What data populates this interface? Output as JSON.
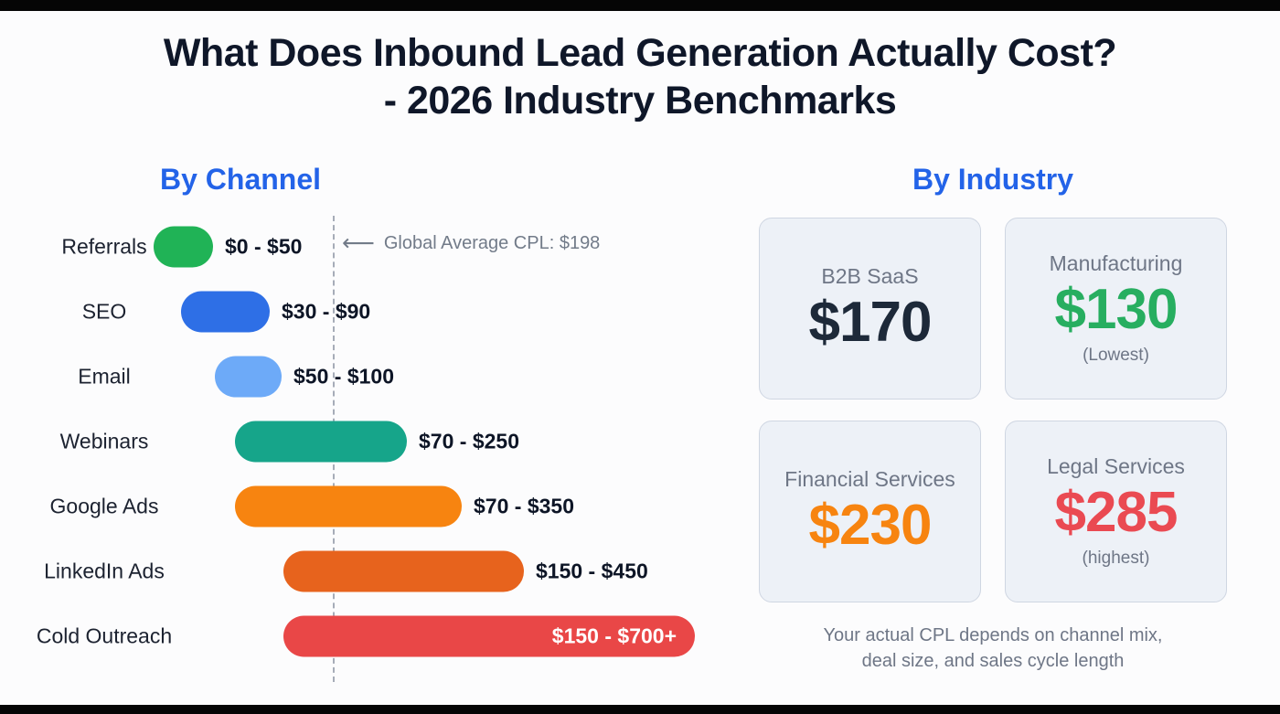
{
  "page": {
    "title": "What Does Inbound Lead Generation Actually Cost? - 2026 Industry Benchmarks"
  },
  "icons": {
    "left_arrow": "⟵"
  },
  "chart_data": [
    {
      "type": "bar",
      "orientation": "horizontal",
      "title": "By Channel",
      "categories": [
        "Referrals",
        "SEO",
        "Email",
        "Webinars",
        "Google Ads",
        "LinkedIn Ads",
        "Cold Outreach"
      ],
      "series": [
        {
          "name": "CPL range low ($)",
          "values": [
            0,
            30,
            50,
            70,
            70,
            150,
            150
          ]
        },
        {
          "name": "CPL range high ($)",
          "values": [
            50,
            90,
            100,
            250,
            350,
            450,
            700
          ]
        }
      ],
      "data_labels": [
        "$0 - $50",
        "$30 - $90",
        "$50 - $100",
        "$70 - $250",
        "$70 - $350",
        "$150 - $450",
        "$150 - $700+"
      ],
      "colors": [
        "#20b356",
        "#2e6fe6",
        "#6daaf8",
        "#16a58a",
        "#f78410",
        "#e7631d",
        "#e94747"
      ],
      "annotations": [
        {
          "text": "Global Average CPL: $198",
          "value": 198,
          "style": "vertical-dashed-line"
        }
      ],
      "xlim": [
        0,
        750
      ],
      "grid": false,
      "legend": false
    },
    {
      "type": "table",
      "title": "By Industry",
      "categories": [
        "B2B SaaS",
        "Manufacturing",
        "Financial Services",
        "Legal Services"
      ],
      "values": [
        170,
        130,
        230,
        285
      ],
      "display_values": [
        "$170",
        "$130",
        "$230",
        "$285"
      ],
      "notes": [
        "",
        "(Lowest)",
        "",
        "(highest)"
      ],
      "value_colors": [
        "#1d2939",
        "#27ae60",
        "#f78410",
        "#ea4a52"
      ],
      "caption": "Your actual CPL depends on channel mix, deal size, and sales cycle length"
    }
  ]
}
